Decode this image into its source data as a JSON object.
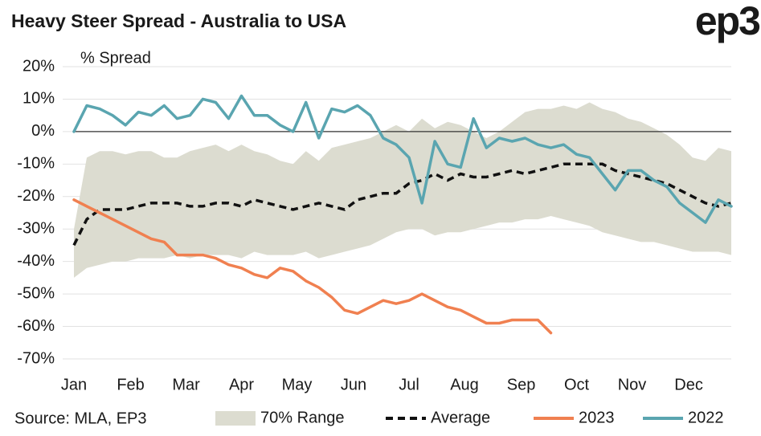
{
  "chart_data": {
    "type": "line",
    "title": "Heavy Steer Spread - Australia to USA",
    "logo": "ep3",
    "y_label": "% Spread",
    "source": "Source: MLA, EP3",
    "x": [
      0,
      1,
      2,
      3,
      4,
      5,
      6,
      7,
      8,
      9,
      10,
      11,
      12,
      13,
      14,
      15,
      16,
      17,
      18,
      19,
      20,
      21,
      22,
      23,
      24,
      25,
      26,
      27,
      28,
      29,
      30,
      31,
      32,
      33,
      34,
      35,
      36,
      37,
      38,
      39,
      40,
      41,
      42,
      43,
      44,
      45,
      46,
      47,
      48,
      49,
      50,
      51
    ],
    "xlim": [
      0,
      51
    ],
    "xticks": [
      {
        "value": 0,
        "label": "Jan"
      },
      {
        "value": 4.4,
        "label": "Feb"
      },
      {
        "value": 8.7,
        "label": "Mar"
      },
      {
        "value": 13,
        "label": "Apr"
      },
      {
        "value": 17.3,
        "label": "May"
      },
      {
        "value": 21.7,
        "label": "Jun"
      },
      {
        "value": 26,
        "label": "Jul"
      },
      {
        "value": 30.3,
        "label": "Aug"
      },
      {
        "value": 34.7,
        "label": "Sep"
      },
      {
        "value": 39,
        "label": "Oct"
      },
      {
        "value": 43.3,
        "label": "Nov"
      },
      {
        "value": 47.7,
        "label": "Dec"
      }
    ],
    "ylim": [
      -70,
      20
    ],
    "yticks": [
      {
        "value": 20,
        "label": "20%"
      },
      {
        "value": 10,
        "label": "10%"
      },
      {
        "value": 0,
        "label": "0%"
      },
      {
        "value": -10,
        "label": "-10%"
      },
      {
        "value": -20,
        "label": "-20%"
      },
      {
        "value": -30,
        "label": "-30%"
      },
      {
        "value": -40,
        "label": "-40%"
      },
      {
        "value": -50,
        "label": "-50%"
      },
      {
        "value": -60,
        "label": "-60%"
      },
      {
        "value": -70,
        "label": "-70%"
      }
    ],
    "grid": true,
    "series": [
      {
        "name": "70% Range",
        "type": "range",
        "color": "#dcdcd0",
        "upper": [
          -30,
          -8,
          -6,
          -6,
          -7,
          -6,
          -6,
          -8,
          -8,
          -6,
          -5,
          -4,
          -6,
          -4,
          -6,
          -7,
          -9,
          -10,
          -6,
          -9,
          -5,
          -4,
          -3,
          -2,
          0,
          2,
          0,
          4,
          1,
          3,
          2,
          0,
          -2,
          0,
          3,
          6,
          7,
          7,
          8,
          7,
          9,
          7,
          6,
          4,
          3,
          1,
          -1,
          -4,
          -8,
          -9,
          -5,
          -6
        ],
        "lower": [
          -45,
          -42,
          -41,
          -40,
          -40,
          -39,
          -39,
          -39,
          -38,
          -39,
          -38,
          -38,
          -38,
          -39,
          -37,
          -38,
          -38,
          -38,
          -37,
          -39,
          -38,
          -37,
          -36,
          -35,
          -33,
          -31,
          -30,
          -30,
          -32,
          -31,
          -31,
          -30,
          -29,
          -28,
          -28,
          -27,
          -27,
          -26,
          -27,
          -28,
          -29,
          -31,
          -32,
          -33,
          -34,
          -34,
          -35,
          -36,
          -37,
          -37,
          -37,
          -38
        ]
      },
      {
        "name": "Average",
        "type": "dashed",
        "color": "#111111",
        "values": [
          -35,
          -27,
          -24,
          -24,
          -24,
          -23,
          -22,
          -22,
          -22,
          -23,
          -23,
          -22,
          -22,
          -23,
          -21,
          -22,
          -23,
          -24,
          -23,
          -22,
          -23,
          -24,
          -21,
          -20,
          -19,
          -19,
          -16,
          -15,
          -13,
          -15,
          -13,
          -14,
          -14,
          -13,
          -12,
          -13,
          -12,
          -11,
          -10,
          -10,
          -10,
          -10,
          -12,
          -13,
          -14,
          -15,
          -16,
          -18,
          -20,
          -22,
          -23,
          -22
        ]
      },
      {
        "name": "2023",
        "type": "line",
        "color": "#f08050",
        "values": [
          -21,
          -23,
          -25,
          -27,
          -29,
          -31,
          -33,
          -34,
          -38,
          -38,
          -38,
          -39,
          -41,
          -42,
          -44,
          -45,
          -42,
          -43,
          -46,
          -48,
          -51,
          -55,
          -56,
          -54,
          -52,
          -53,
          -52,
          -50,
          -52,
          -54,
          -55,
          -57,
          -59,
          -59,
          -58,
          -58,
          -58,
          -62,
          null,
          null,
          null,
          null,
          null,
          null,
          null,
          null,
          null,
          null,
          null,
          null,
          null,
          null
        ]
      },
      {
        "name": "2022",
        "type": "line",
        "color": "#5aa5b0",
        "values": [
          0,
          8,
          7,
          5,
          2,
          6,
          5,
          8,
          4,
          5,
          10,
          9,
          4,
          11,
          5,
          5,
          2,
          0,
          9,
          -2,
          7,
          6,
          8,
          5,
          -2,
          -4,
          -8,
          -22,
          -3,
          -10,
          -11,
          4,
          -5,
          -2,
          -3,
          -2,
          -4,
          -5,
          -4,
          -7,
          -8,
          -13,
          -18,
          -12,
          -12,
          -15,
          -17,
          -22,
          -25,
          -28,
          -21,
          -23
        ]
      }
    ]
  }
}
